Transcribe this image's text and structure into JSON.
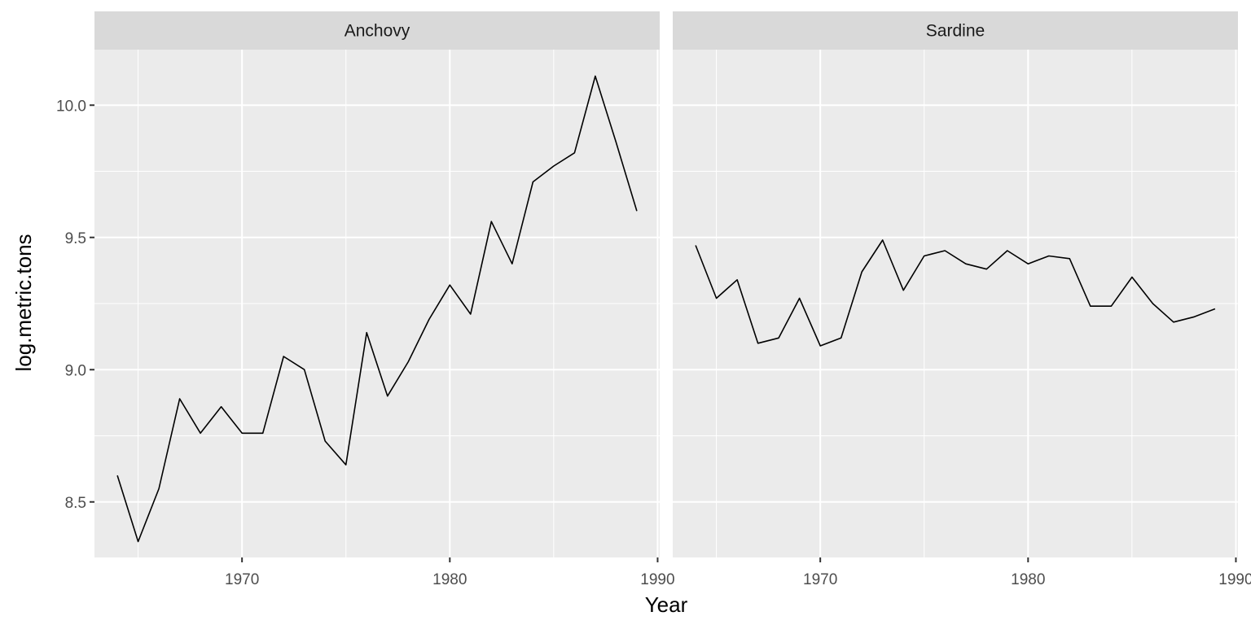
{
  "chart_data": {
    "type": "line",
    "xlabel": "Year",
    "ylabel": "log.metric.tons",
    "xlim": [
      1962.9,
      1990.1
    ],
    "ylim": [
      8.29,
      10.21
    ],
    "x_ticks": [
      1970,
      1980,
      1990
    ],
    "x_tick_labels": [
      "1970",
      "1980",
      "1990"
    ],
    "y_ticks": [
      8.5,
      9.0,
      9.5,
      10.0
    ],
    "y_tick_labels": [
      "8.5",
      "9.0",
      "9.5",
      "10.0"
    ],
    "grid": true,
    "facets": [
      {
        "label": "Anchovy",
        "x": [
          1964,
          1965,
          1966,
          1967,
          1968,
          1969,
          1970,
          1971,
          1972,
          1973,
          1974,
          1975,
          1976,
          1977,
          1978,
          1979,
          1980,
          1981,
          1982,
          1983,
          1984,
          1985,
          1986,
          1987,
          1988,
          1989
        ],
        "y": [
          8.6,
          8.35,
          8.55,
          8.89,
          8.76,
          8.86,
          8.76,
          8.76,
          9.05,
          9.0,
          8.73,
          8.64,
          9.14,
          8.9,
          9.03,
          9.19,
          9.32,
          9.21,
          9.56,
          9.4,
          9.71,
          9.77,
          9.82,
          10.11,
          9.86,
          9.6
        ]
      },
      {
        "label": "Sardine",
        "x": [
          1964,
          1965,
          1966,
          1967,
          1968,
          1969,
          1970,
          1971,
          1972,
          1973,
          1974,
          1975,
          1976,
          1977,
          1978,
          1979,
          1980,
          1981,
          1982,
          1983,
          1984,
          1985,
          1986,
          1987,
          1988,
          1989
        ],
        "y": [
          9.47,
          9.27,
          9.34,
          9.1,
          9.12,
          9.27,
          9.09,
          9.12,
          9.37,
          9.49,
          9.3,
          9.43,
          9.45,
          9.4,
          9.38,
          9.45,
          9.4,
          9.43,
          9.42,
          9.24,
          9.24,
          9.35,
          9.25,
          9.18,
          9.2,
          9.23
        ]
      }
    ]
  }
}
